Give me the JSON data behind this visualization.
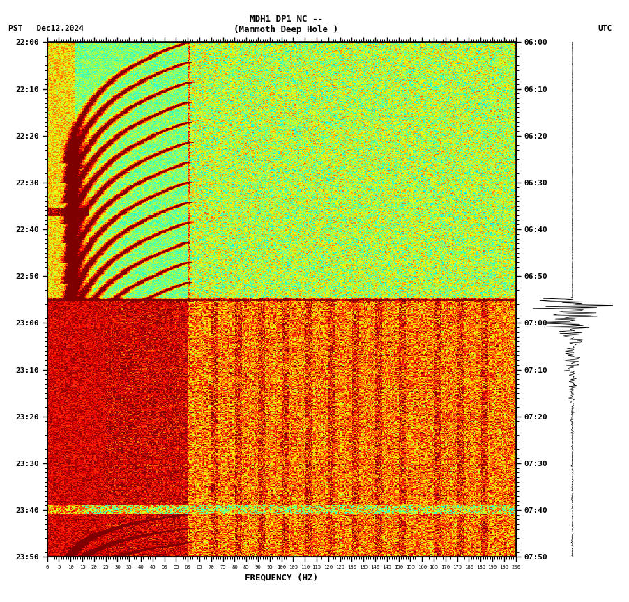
{
  "title_line1": "MDH1 DP1 NC --",
  "title_line2": "(Mammoth Deep Hole )",
  "left_label": "PST   Dec12,2024",
  "right_label": "UTC",
  "xlabel": "FREQUENCY (HZ)",
  "time_labels_left": [
    "22:00",
    "22:10",
    "22:20",
    "22:30",
    "22:40",
    "22:50",
    "23:00",
    "23:10",
    "23:20",
    "23:30",
    "23:40",
    "23:50"
  ],
  "time_labels_right": [
    "06:00",
    "06:10",
    "06:20",
    "06:30",
    "06:40",
    "06:50",
    "07:00",
    "07:10",
    "07:20",
    "07:30",
    "07:40",
    "07:50"
  ],
  "freq_ticks": [
    0,
    5,
    10,
    15,
    20,
    25,
    30,
    35,
    40,
    45,
    50,
    55,
    60,
    65,
    70,
    75,
    80,
    85,
    90,
    95,
    100,
    105,
    110,
    115,
    120,
    125,
    130,
    135,
    140,
    145,
    150,
    155,
    160,
    165,
    170,
    175,
    180,
    185,
    190,
    195,
    200
  ],
  "fig_width": 9.02,
  "fig_height": 8.64,
  "dpi": 100,
  "n_time": 720,
  "n_freq": 400,
  "quake_time_idx": 360,
  "max_freq_hz": 200,
  "vline_freq_hz": 60,
  "num_arcs": 12,
  "background_color": "white"
}
